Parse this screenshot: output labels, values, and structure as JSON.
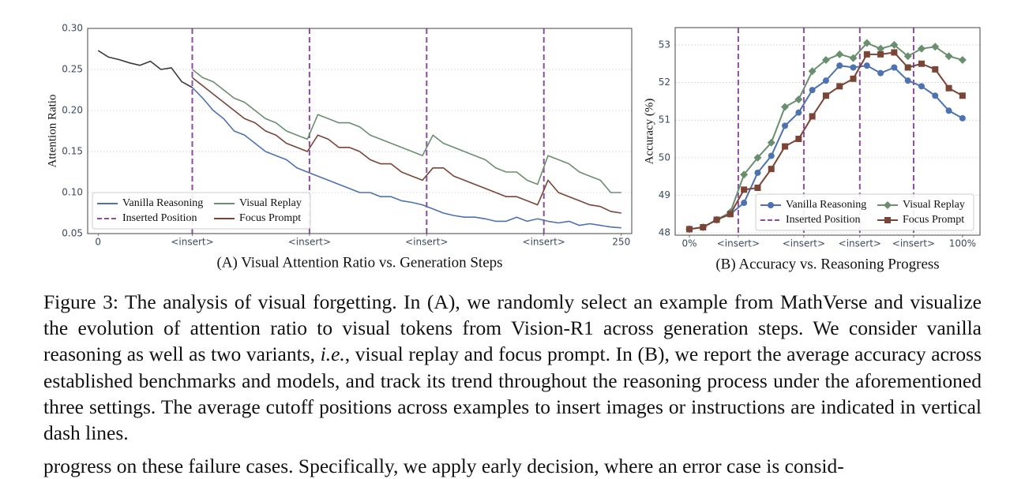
{
  "chart_data": [
    {
      "type": "line",
      "title": "(A) Visual Attention Ratio vs. Generation Steps",
      "ylabel": "Attention Ratio",
      "x": [
        0,
        5,
        10,
        15,
        20,
        25,
        30,
        35,
        40,
        45,
        50,
        55,
        60,
        65,
        70,
        75,
        80,
        85,
        90,
        95,
        100,
        105,
        110,
        115,
        120,
        125,
        130,
        135,
        140,
        145,
        150,
        155,
        160,
        165,
        170,
        175,
        180,
        185,
        190,
        195,
        200,
        205,
        210,
        215,
        220,
        225,
        230,
        235,
        240,
        245,
        250
      ],
      "series": [
        {
          "color": "#3a3a3a",
          "values": [
            0.273,
            0.265,
            0.262,
            0.258,
            0.255,
            0.26,
            0.25,
            0.252,
            0.235,
            0.228,
            null,
            null,
            null,
            null,
            null,
            null,
            null,
            null,
            null,
            null,
            null,
            null,
            null,
            null,
            null,
            null,
            null,
            null,
            null,
            null,
            null,
            null,
            null,
            null,
            null,
            null,
            null,
            null,
            null,
            null,
            null,
            null,
            null,
            null,
            null,
            null,
            null,
            null,
            null,
            null,
            null
          ]
        },
        {
          "name": "Vanilla Reasoning",
          "color": "#4c72b0",
          "values": [
            null,
            null,
            null,
            null,
            null,
            null,
            null,
            null,
            null,
            0.228,
            0.215,
            0.2,
            0.19,
            0.175,
            0.17,
            0.16,
            0.15,
            0.145,
            0.14,
            0.13,
            0.125,
            0.12,
            0.115,
            0.11,
            0.105,
            0.1,
            0.1,
            0.095,
            0.095,
            0.09,
            0.088,
            0.085,
            0.08,
            0.075,
            0.072,
            0.07,
            0.07,
            0.068,
            0.065,
            0.065,
            0.07,
            0.065,
            0.068,
            0.065,
            0.063,
            0.065,
            0.06,
            0.062,
            0.06,
            0.058,
            0.057
          ]
        },
        {
          "name": "Visual Replay",
          "color": "#6a8f6f",
          "values": [
            null,
            null,
            null,
            null,
            null,
            null,
            null,
            null,
            null,
            0.25,
            0.24,
            0.235,
            0.225,
            0.215,
            0.21,
            0.2,
            0.19,
            0.185,
            0.175,
            0.17,
            0.165,
            0.195,
            0.19,
            0.185,
            0.185,
            0.18,
            0.17,
            0.165,
            0.16,
            0.155,
            0.15,
            0.145,
            0.17,
            0.16,
            0.155,
            0.15,
            0.145,
            0.14,
            0.13,
            0.125,
            0.125,
            0.115,
            0.11,
            0.145,
            0.14,
            0.135,
            0.125,
            0.12,
            0.115,
            0.1,
            0.1
          ]
        },
        {
          "name": "Focus Prompt",
          "color": "#7a4536",
          "values": [
            null,
            null,
            null,
            null,
            null,
            null,
            null,
            null,
            null,
            0.24,
            0.23,
            0.22,
            0.21,
            0.2,
            0.19,
            0.185,
            0.175,
            0.17,
            0.16,
            0.155,
            0.15,
            0.17,
            0.165,
            0.155,
            0.155,
            0.15,
            0.14,
            0.135,
            0.135,
            0.125,
            0.12,
            0.115,
            0.13,
            0.13,
            0.12,
            0.115,
            0.11,
            0.105,
            0.1,
            0.095,
            0.095,
            0.09,
            0.085,
            0.115,
            0.1,
            0.095,
            0.09,
            0.085,
            0.083,
            0.077,
            0.075
          ]
        }
      ],
      "vlines": {
        "name": "Inserted Position",
        "color": "#8e4c9e",
        "x": [
          45,
          101,
          157,
          213
        ]
      },
      "xlim": [
        -5,
        255
      ],
      "ylim": [
        0.05,
        0.3
      ],
      "xticks": [
        0,
        {
          "value": 45,
          "label": "<insert>"
        },
        {
          "value": 101,
          "label": "<insert>"
        },
        {
          "value": 157,
          "label": "<insert>"
        },
        {
          "value": 213,
          "label": "<insert>"
        },
        250
      ],
      "yticks": [
        0.05,
        {
          "value": 0.1,
          "label": "0.10"
        },
        0.15,
        {
          "value": 0.2,
          "label": "0.20"
        },
        0.25,
        {
          "value": 0.3,
          "label": "0.30"
        }
      ],
      "grid": true,
      "legend": "lower left"
    },
    {
      "type": "line",
      "title": "(B) Accuracy vs. Reasoning Progress",
      "ylabel": "Accuracy (%)",
      "x": [
        0,
        5,
        10,
        15,
        20,
        25,
        30,
        35,
        40,
        45,
        50,
        55,
        60,
        65,
        70,
        75,
        80,
        85,
        90,
        95,
        100
      ],
      "series": [
        {
          "name": "Vanilla Reasoning",
          "color": "#4c72b0",
          "marker": "circle",
          "values": [
            48.1,
            48.15,
            48.35,
            48.5,
            48.8,
            49.6,
            50.05,
            50.85,
            51.2,
            51.8,
            52.05,
            52.45,
            52.4,
            52.45,
            52.25,
            52.4,
            52.05,
            51.9,
            51.65,
            51.25,
            51.05
          ]
        },
        {
          "name": "Visual Replay",
          "color": "#6a8f6f",
          "marker": "diamond",
          "values": [
            48.1,
            48.15,
            48.35,
            48.55,
            49.55,
            50.0,
            50.4,
            51.35,
            51.55,
            52.3,
            52.6,
            52.75,
            52.65,
            53.05,
            52.9,
            53.0,
            52.7,
            52.9,
            52.95,
            52.7,
            52.6
          ]
        },
        {
          "name": "Focus Prompt",
          "color": "#7a4536",
          "marker": "square",
          "values": [
            48.1,
            48.15,
            48.35,
            48.5,
            49.15,
            49.2,
            49.7,
            50.3,
            50.5,
            51.1,
            51.65,
            51.9,
            52.1,
            52.75,
            52.75,
            52.8,
            52.4,
            52.5,
            52.35,
            51.85,
            51.65
          ]
        }
      ],
      "vlines": {
        "name": "Inserted Position",
        "color": "#8e4c9e",
        "x": [
          17.9,
          41.9,
          62.4,
          82.1
        ]
      },
      "xlim": [
        -5.2,
        106.4
      ],
      "ylim": [
        47.94,
        53.46
      ],
      "xticks": [
        {
          "value": 0,
          "label": "0%"
        },
        {
          "value": 17.9,
          "label": "<insert>"
        },
        {
          "value": 41.9,
          "label": "<insert>"
        },
        {
          "value": 62.4,
          "label": "<insert>"
        },
        {
          "value": 82.1,
          "label": "<insert>"
        },
        {
          "value": 100,
          "label": "100%"
        }
      ],
      "yticks": [
        48,
        49,
        50,
        51,
        52,
        53
      ],
      "grid": true,
      "legend": "lower right"
    }
  ],
  "caption": [
    "Figure 3: The analysis of visual forgetting. In (A), we randomly select an example from MathVerse and visualize the evolution of attention ratio to visual tokens from Vision-R1 across generation steps. We consider vanilla reasoning as well as two variants, ",
    "i.e.",
    ", visual replay and focus prompt. In (B), we report the average accuracy across established benchmarks and models, and track its trend throughout the reasoning process under the aforementioned three settings. The average cutoff positions across examples to insert images or instructions are indicated in vertical dash lines."
  ],
  "body_text": "progress on these failure cases. Specifically, we apply early decision, where an error case is consid-"
}
